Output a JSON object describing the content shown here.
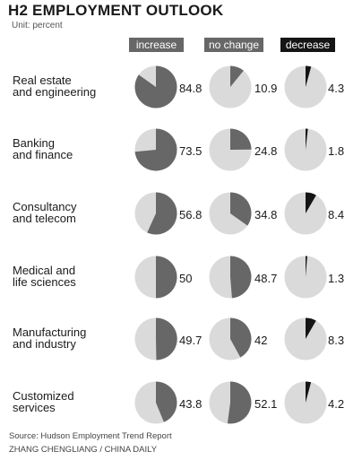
{
  "title": "H2 EMPLOYMENT OUTLOOK",
  "unit": "Unit: percent",
  "source": "Source: Hudson Employment Trend Report",
  "credit": "ZHANG CHENGLIANG / CHINA DAILY",
  "colors": {
    "increase": "#676767",
    "no_change": "#676767",
    "decrease": "#151515",
    "background_pie": "#dadada"
  },
  "chart_data": {
    "type": "pie",
    "title": "H2 EMPLOYMENT OUTLOOK",
    "unit": "Unit: percent",
    "categories": [
      "Real estate\nand engineering",
      "Banking\nand finance",
      "Consultancy\nand telecom",
      "Medical and\nlife sciences",
      "Manufacturing\nand industry",
      "Customized\nservices"
    ],
    "series": [
      {
        "name": "increase",
        "values": [
          84.8,
          73.5,
          56.8,
          50,
          49.7,
          43.8
        ]
      },
      {
        "name": "no change",
        "values": [
          10.9,
          24.8,
          34.8,
          48.7,
          42,
          52.1
        ]
      },
      {
        "name": "decrease",
        "values": [
          4.3,
          1.8,
          8.4,
          1.3,
          8.3,
          4.2
        ]
      }
    ]
  }
}
